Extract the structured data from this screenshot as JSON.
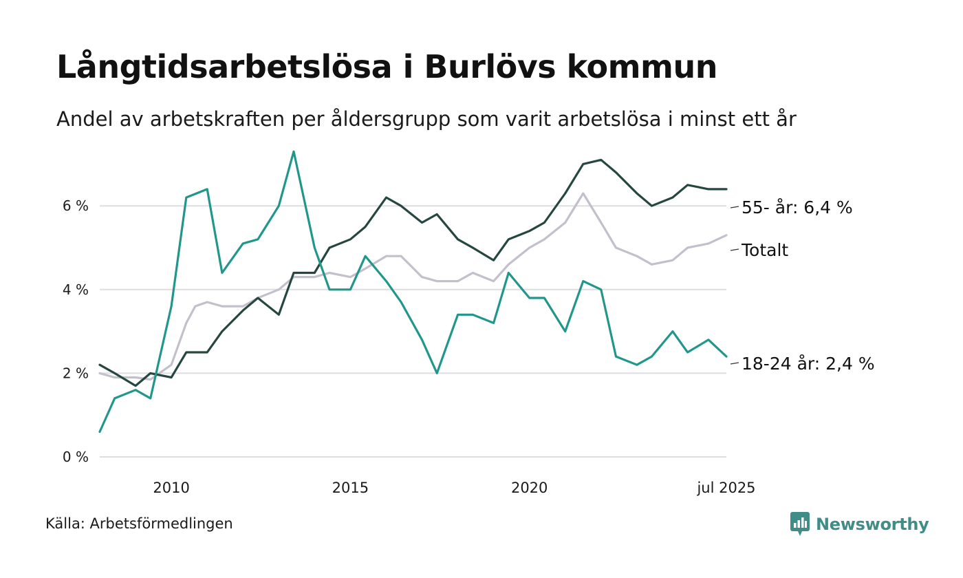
{
  "title": "Långtidsarbetslösa i Burlövs kommun",
  "subtitle": "Andel av arbetskraften per åldersgrupp som varit arbetslösa i minst ett år",
  "source": "Källa: Arbetsförmedlingen",
  "brand": {
    "name": "Newsworthy",
    "icon": "newsworthy-logo-icon",
    "color": "#3f8d86"
  },
  "chart_data": {
    "type": "line",
    "x_start": "2008-01",
    "x_end": "2025-07",
    "x_tick_labels": [
      {
        "date": "2010-01",
        "label": "2010"
      },
      {
        "date": "2015-01",
        "label": "2015"
      },
      {
        "date": "2020-01",
        "label": "2020"
      },
      {
        "date": "2025-07",
        "label": "jul 2025"
      }
    ],
    "ylim": [
      0,
      7.5
    ],
    "y_ticks": [
      {
        "value": 0,
        "label": "0 %"
      },
      {
        "value": 2,
        "label": "2 %"
      },
      {
        "value": 4,
        "label": "4 %"
      },
      {
        "value": 6,
        "label": "6 %"
      }
    ],
    "grid": true,
    "series": [
      {
        "name": "Totalt",
        "end_label": "Totalt",
        "color": "#c3c0cb",
        "points": [
          [
            "2008-01",
            2.0
          ],
          [
            "2008-06",
            1.9
          ],
          [
            "2009-01",
            1.9
          ],
          [
            "2009-06",
            1.85
          ],
          [
            "2010-01",
            2.2
          ],
          [
            "2010-06",
            3.2
          ],
          [
            "2010-09",
            3.6
          ],
          [
            "2011-01",
            3.7
          ],
          [
            "2011-06",
            3.6
          ],
          [
            "2012-01",
            3.6
          ],
          [
            "2012-06",
            3.8
          ],
          [
            "2013-01",
            4.0
          ],
          [
            "2013-06",
            4.3
          ],
          [
            "2014-01",
            4.3
          ],
          [
            "2014-06",
            4.4
          ],
          [
            "2015-01",
            4.3
          ],
          [
            "2015-06",
            4.5
          ],
          [
            "2016-01",
            4.8
          ],
          [
            "2016-06",
            4.8
          ],
          [
            "2017-01",
            4.3
          ],
          [
            "2017-06",
            4.2
          ],
          [
            "2018-01",
            4.2
          ],
          [
            "2018-06",
            4.4
          ],
          [
            "2019-01",
            4.2
          ],
          [
            "2019-06",
            4.6
          ],
          [
            "2020-01",
            5.0
          ],
          [
            "2020-06",
            5.2
          ],
          [
            "2021-01",
            5.6
          ],
          [
            "2021-07",
            6.3
          ],
          [
            "2022-01",
            5.6
          ],
          [
            "2022-06",
            5.0
          ],
          [
            "2023-01",
            4.8
          ],
          [
            "2023-06",
            4.6
          ],
          [
            "2024-01",
            4.7
          ],
          [
            "2024-06",
            5.0
          ],
          [
            "2025-01",
            5.1
          ],
          [
            "2025-07",
            5.3
          ]
        ]
      },
      {
        "name": "55- år",
        "end_label": "55- år: 6,4 %",
        "color": "#25473f",
        "points": [
          [
            "2008-01",
            2.2
          ],
          [
            "2008-06",
            2.0
          ],
          [
            "2009-01",
            1.7
          ],
          [
            "2009-06",
            2.0
          ],
          [
            "2010-01",
            1.9
          ],
          [
            "2010-06",
            2.5
          ],
          [
            "2011-01",
            2.5
          ],
          [
            "2011-06",
            3.0
          ],
          [
            "2012-01",
            3.5
          ],
          [
            "2012-06",
            3.8
          ],
          [
            "2013-01",
            3.4
          ],
          [
            "2013-06",
            4.4
          ],
          [
            "2014-01",
            4.4
          ],
          [
            "2014-06",
            5.0
          ],
          [
            "2015-01",
            5.2
          ],
          [
            "2015-06",
            5.5
          ],
          [
            "2016-01",
            6.2
          ],
          [
            "2016-06",
            6.0
          ],
          [
            "2017-01",
            5.6
          ],
          [
            "2017-06",
            5.8
          ],
          [
            "2018-01",
            5.2
          ],
          [
            "2018-06",
            5.0
          ],
          [
            "2019-01",
            4.7
          ],
          [
            "2019-06",
            5.2
          ],
          [
            "2020-01",
            5.4
          ],
          [
            "2020-06",
            5.6
          ],
          [
            "2021-01",
            6.3
          ],
          [
            "2021-07",
            7.0
          ],
          [
            "2022-01",
            7.1
          ],
          [
            "2022-06",
            6.8
          ],
          [
            "2023-01",
            6.3
          ],
          [
            "2023-06",
            6.0
          ],
          [
            "2024-01",
            6.2
          ],
          [
            "2024-06",
            6.5
          ],
          [
            "2025-01",
            6.4
          ],
          [
            "2025-07",
            6.4
          ]
        ]
      },
      {
        "name": "18-24 år",
        "end_label": "18-24 år: 2,4 %",
        "color": "#20978a",
        "points": [
          [
            "2008-01",
            0.6
          ],
          [
            "2008-06",
            1.4
          ],
          [
            "2009-01",
            1.6
          ],
          [
            "2009-06",
            1.4
          ],
          [
            "2010-01",
            3.6
          ],
          [
            "2010-06",
            6.2
          ],
          [
            "2011-01",
            6.4
          ],
          [
            "2011-06",
            4.4
          ],
          [
            "2012-01",
            5.1
          ],
          [
            "2012-06",
            5.2
          ],
          [
            "2013-01",
            6.0
          ],
          [
            "2013-06",
            7.3
          ],
          [
            "2014-01",
            5.0
          ],
          [
            "2014-06",
            4.0
          ],
          [
            "2015-01",
            4.0
          ],
          [
            "2015-06",
            4.8
          ],
          [
            "2016-01",
            4.2
          ],
          [
            "2016-06",
            3.7
          ],
          [
            "2017-01",
            2.8
          ],
          [
            "2017-06",
            2.0
          ],
          [
            "2018-01",
            3.4
          ],
          [
            "2018-06",
            3.4
          ],
          [
            "2019-01",
            3.2
          ],
          [
            "2019-06",
            4.4
          ],
          [
            "2020-01",
            3.8
          ],
          [
            "2020-06",
            3.8
          ],
          [
            "2021-01",
            3.0
          ],
          [
            "2021-07",
            4.2
          ],
          [
            "2022-01",
            4.0
          ],
          [
            "2022-06",
            2.4
          ],
          [
            "2023-01",
            2.2
          ],
          [
            "2023-06",
            2.4
          ],
          [
            "2024-01",
            3.0
          ],
          [
            "2024-06",
            2.5
          ],
          [
            "2025-01",
            2.8
          ],
          [
            "2025-07",
            2.4
          ]
        ]
      }
    ]
  }
}
